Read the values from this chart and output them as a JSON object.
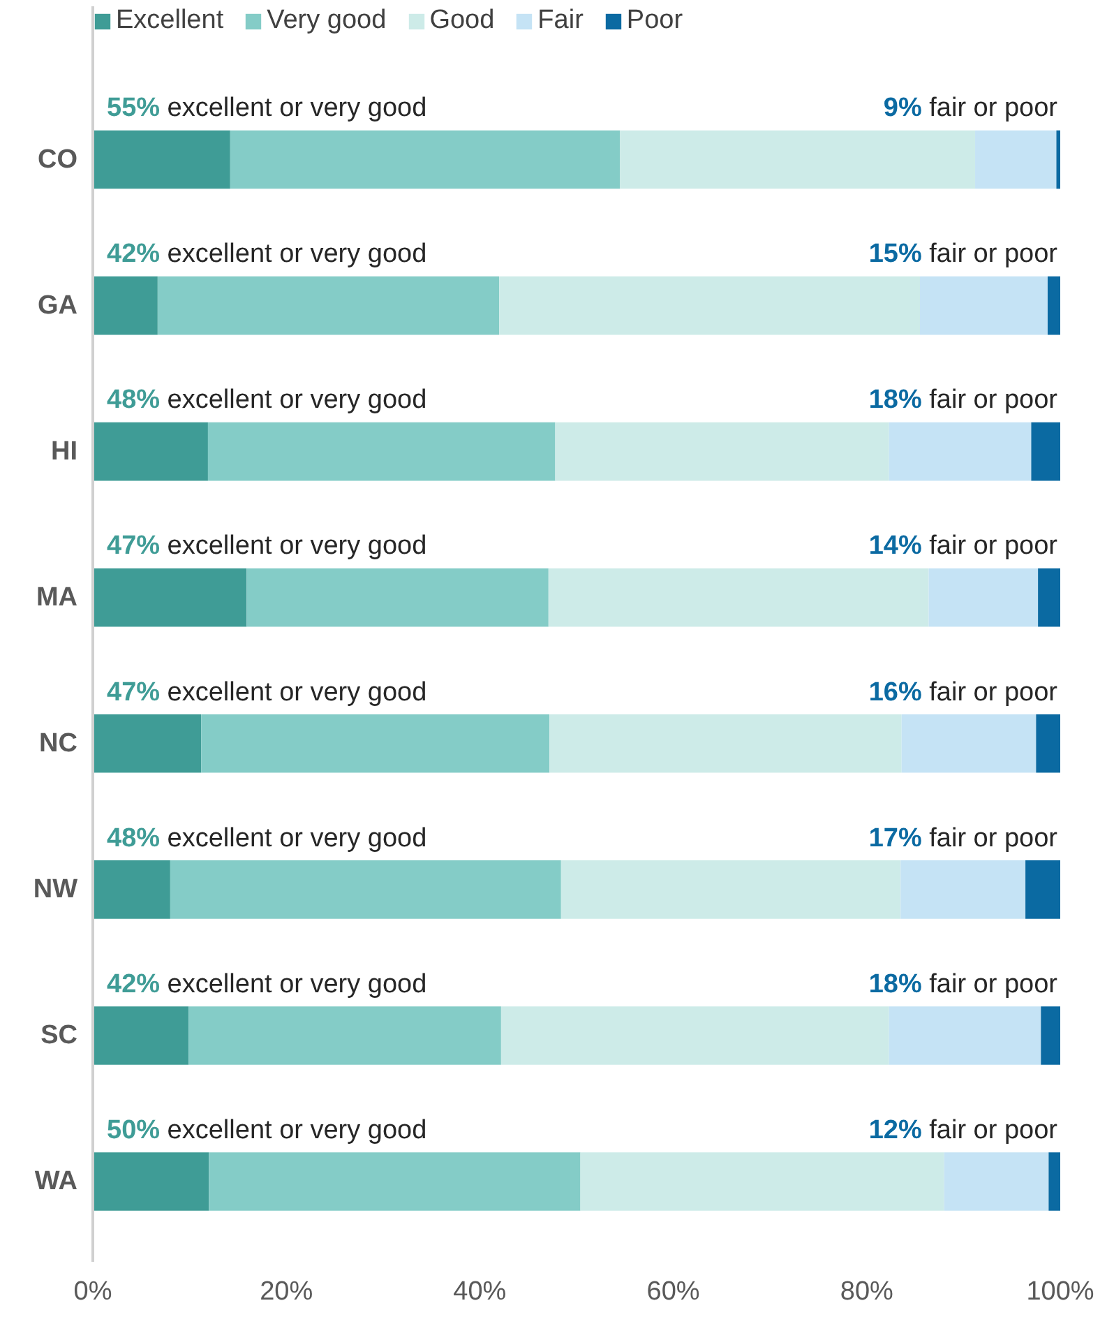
{
  "chart_data": {
    "type": "bar",
    "orientation": "horizontal",
    "stacked": true,
    "categories": [
      "CO",
      "GA",
      "HI",
      "MA",
      "NC",
      "NW",
      "SC",
      "WA"
    ],
    "series": [
      {
        "name": "Excellent",
        "color": "#3f9c96",
        "values": [
          14.2,
          6.7,
          11.9,
          15.9,
          11.2,
          8.0,
          9.9,
          12.0
        ]
      },
      {
        "name": "Very good",
        "color": "#84ccc7",
        "values": [
          40.3,
          35.3,
          35.9,
          31.2,
          36.0,
          40.4,
          32.3,
          38.4
        ]
      },
      {
        "name": "Good",
        "color": "#cdebe8",
        "values": [
          36.7,
          43.5,
          34.5,
          39.3,
          36.4,
          35.1,
          40.1,
          37.6
        ]
      },
      {
        "name": "Fair",
        "color": "#c5e3f5",
        "values": [
          8.4,
          13.2,
          14.7,
          11.3,
          13.9,
          12.9,
          15.7,
          10.8
        ]
      },
      {
        "name": "Poor",
        "color": "#0b6aa2",
        "values": [
          0.4,
          1.3,
          3.0,
          2.3,
          2.5,
          3.6,
          2.0,
          1.2
        ]
      }
    ],
    "xlim": [
      0,
      100
    ],
    "xticks": [
      {
        "value": 0,
        "label": "0%"
      },
      {
        "value": 20,
        "label": "20%"
      },
      {
        "value": 40,
        "label": "40%"
      },
      {
        "value": 60,
        "label": "60%"
      },
      {
        "value": 80,
        "label": "80%"
      },
      {
        "value": 100,
        "label": "100%"
      }
    ],
    "grid": false,
    "legend": "top left",
    "annotations": [
      "55% excellent or very good",
      "9% fair or poor",
      "42% excellent or very good",
      "15% fair or poor",
      "48% excellent or very good",
      "18% fair or poor",
      "47% excellent or very good",
      "14% fair or poor",
      "47% excellent or very good",
      "16% fair or poor",
      "48% excellent or very good",
      "17% fair or poor",
      "42% excellent or very good",
      "18% fair or poor",
      "50% excellent or very good",
      "12% fair or poor"
    ]
  }
}
